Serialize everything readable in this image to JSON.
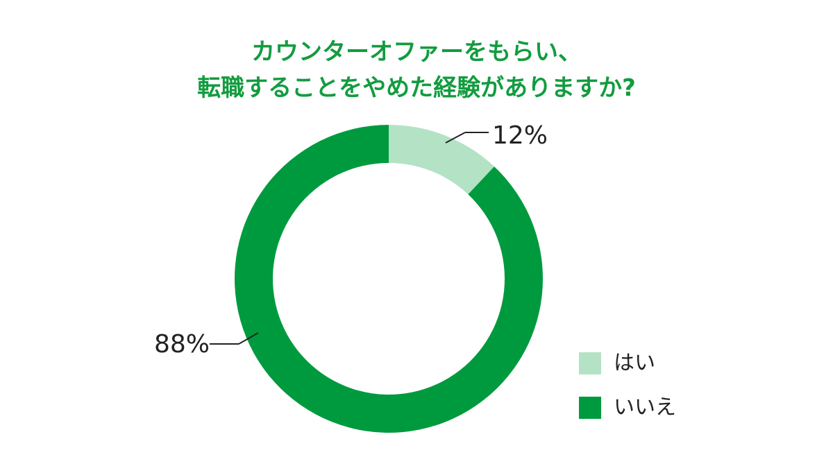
{
  "chart_data": {
    "type": "pie",
    "style": "donut",
    "title_lines": [
      "カウンターオファーをもらい、",
      "転職することをやめた経験がありますか?"
    ],
    "slices": [
      {
        "label": "はい",
        "value": 12,
        "display": "12%",
        "color": "#b4e2c5"
      },
      {
        "label": "いいえ",
        "value": 88,
        "display": "88%",
        "color": "#009a3e"
      }
    ],
    "legend_placement": "bottom-right",
    "title_color": "#129c3f"
  }
}
